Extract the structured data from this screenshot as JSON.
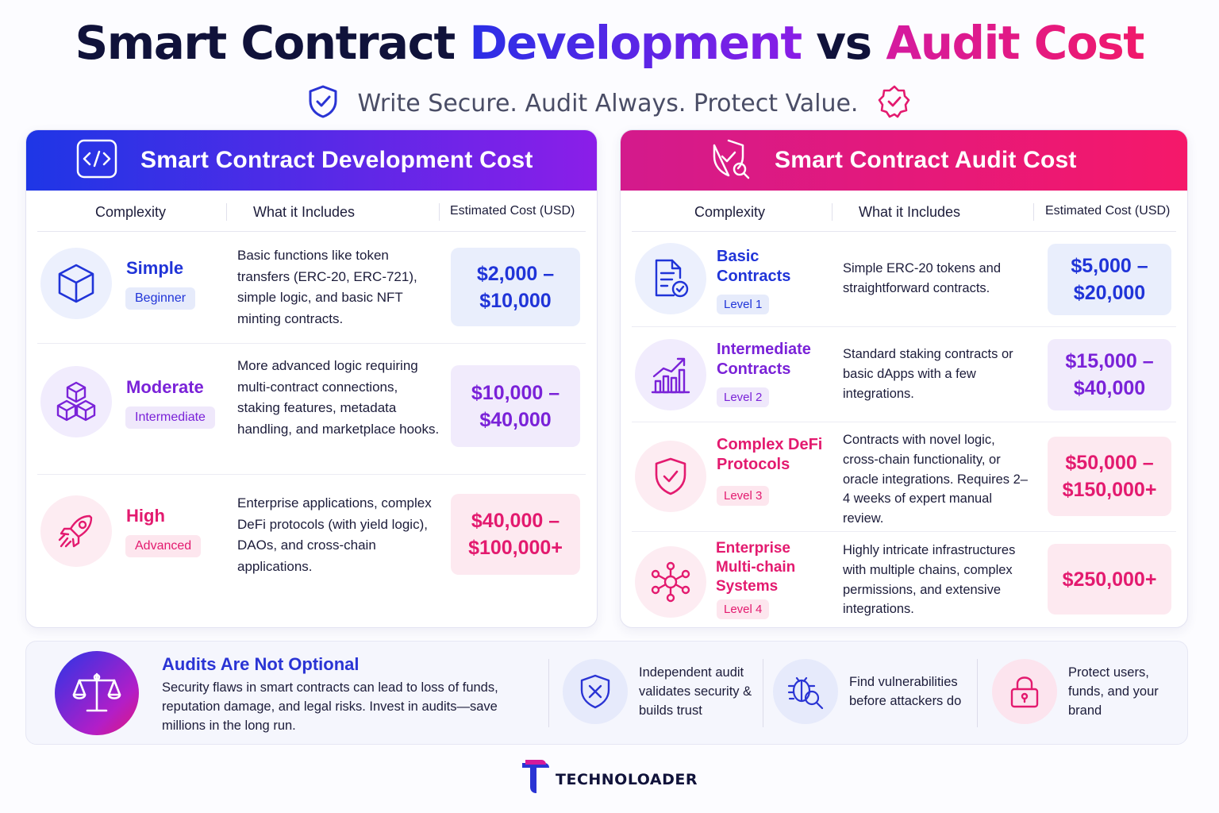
{
  "header": {
    "title_part1": "Smart Contract",
    "title_part2": "Development",
    "title_part3": "vs",
    "title_part4": "Audit Cost",
    "tagline": "Write Secure. Audit Always. Protect Value."
  },
  "development": {
    "title": "Smart Contract Development Cost",
    "columns": [
      "Complexity",
      "What it Includes",
      "Estimated Cost (USD)"
    ],
    "rows": [
      {
        "icon": "cube-icon",
        "level": "Simple",
        "badge": "Beginner",
        "description": "Basic functions like token transfers (ERC-20, ERC-721), simple logic, and basic NFT minting contracts.",
        "cost_line1": "$2,000 –",
        "cost_line2": "$10,000",
        "accent": "#2034d8"
      },
      {
        "icon": "stacked-cubes-icon",
        "level": "Moderate",
        "badge": "Intermediate",
        "description": "More advanced logic requiring multi-contract connections, staking features, metadata handling, and marketplace hooks.",
        "cost_line1": "$10,000 –",
        "cost_line2": "$40,000",
        "accent": "#7a22d8"
      },
      {
        "icon": "rocket-icon",
        "level": "High",
        "badge": "Advanced",
        "description": "Enterprise applications, complex DeFi protocols (with yield logic), DAOs, and cross-chain applications.",
        "cost_line1": "$40,000 –",
        "cost_line2": "$100,000+",
        "accent": "#e31a6f"
      }
    ]
  },
  "audit": {
    "title": "Smart Contract Audit Cost",
    "columns": [
      "Complexity",
      "What it Includes",
      "Estimated Cost (USD)"
    ],
    "rows": [
      {
        "icon": "document-check-icon",
        "level": "Basic Contracts",
        "badge": "Level 1",
        "description": "Simple ERC-20 tokens and straightforward contracts.",
        "cost_line1": "$5,000 –",
        "cost_line2": "$20,000",
        "accent": "#2034d8"
      },
      {
        "icon": "bar-chart-icon",
        "level": "Intermediate Contracts",
        "badge": "Level 2",
        "description": "Standard staking contracts or basic dApps with a few integrations.",
        "cost_line1": "$15,000 –",
        "cost_line2": "$40,000",
        "accent": "#7a22d8"
      },
      {
        "icon": "shield-check-icon",
        "level": "Complex DeFi Protocols",
        "badge": "Level 3",
        "description": "Contracts with novel logic, cross-chain functionality, or oracle integrations. Requires 2–4 weeks of expert manual review.",
        "cost_line1": "$50,000 –",
        "cost_line2": "$150,000+",
        "accent": "#e31a6f"
      },
      {
        "icon": "network-nodes-icon",
        "level": "Enterprise Multi-chain Systems",
        "badge": "Level 4",
        "description": "Highly intricate infrastructures with multiple chains, complex permissions, and extensive integrations.",
        "cost_line1": "$250,000+",
        "cost_line2": "",
        "accent": "#e31a6f"
      }
    ]
  },
  "footer_box": {
    "icon": "scales-icon",
    "title": "Audits Are Not Optional",
    "text": "Security flaws in smart contracts can lead to loss of funds, reputation damage, and legal risks. Invest in audits—save millions in the long run.",
    "features": [
      {
        "icon": "shield-x-icon",
        "text": "Independent audit validates security & builds trust"
      },
      {
        "icon": "bug-search-icon",
        "text": "Find vulnerabilities before attackers do"
      },
      {
        "icon": "padlock-icon",
        "text": "Protect users, funds, and your brand"
      }
    ]
  },
  "brand": {
    "name": "TECHNOLOADER"
  }
}
